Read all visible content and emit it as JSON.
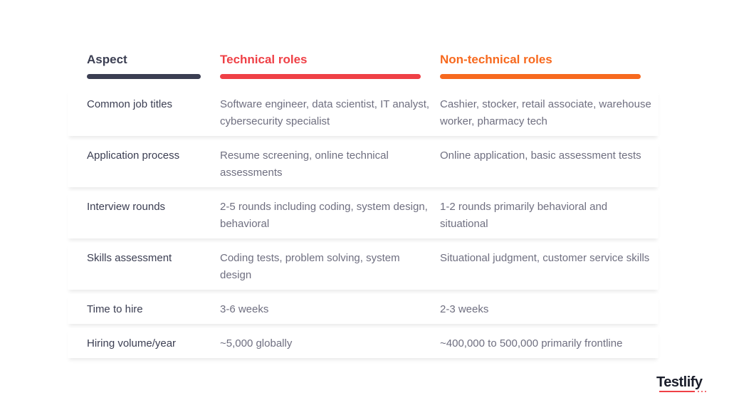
{
  "headers": {
    "aspect": "Aspect",
    "technical": "Technical roles",
    "non_technical": "Non-technical roles"
  },
  "colors": {
    "aspect": "#3b3e52",
    "technical": "#ef4046",
    "non_technical": "#f7691e"
  },
  "rows": [
    {
      "aspect": "Common job titles",
      "technical": "Software engineer, data scientist, IT analyst, cybersecurity specialist",
      "non_technical": "Cashier, stocker, retail associate, warehouse worker, pharmacy tech"
    },
    {
      "aspect": "Application process",
      "technical": "Resume screening, online technical assessments",
      "non_technical": "Online application, basic assessment tests"
    },
    {
      "aspect": "Interview rounds",
      "technical": "2-5 rounds including coding, system design, behavioral",
      "non_technical": "1-2 rounds primarily behavioral and situational"
    },
    {
      "aspect": "Skills assessment",
      "technical": "Coding tests, problem solving, system design",
      "non_technical": "Situational judgment, customer service skills"
    },
    {
      "aspect": "Time to hire",
      "technical": "3-6 weeks",
      "non_technical": "2-3 weeks"
    },
    {
      "aspect": "Hiring volume/year",
      "technical": "~5,000 globally",
      "non_technical": "~400,000 to 500,000 primarily frontline"
    }
  ],
  "logo": "Testlify"
}
